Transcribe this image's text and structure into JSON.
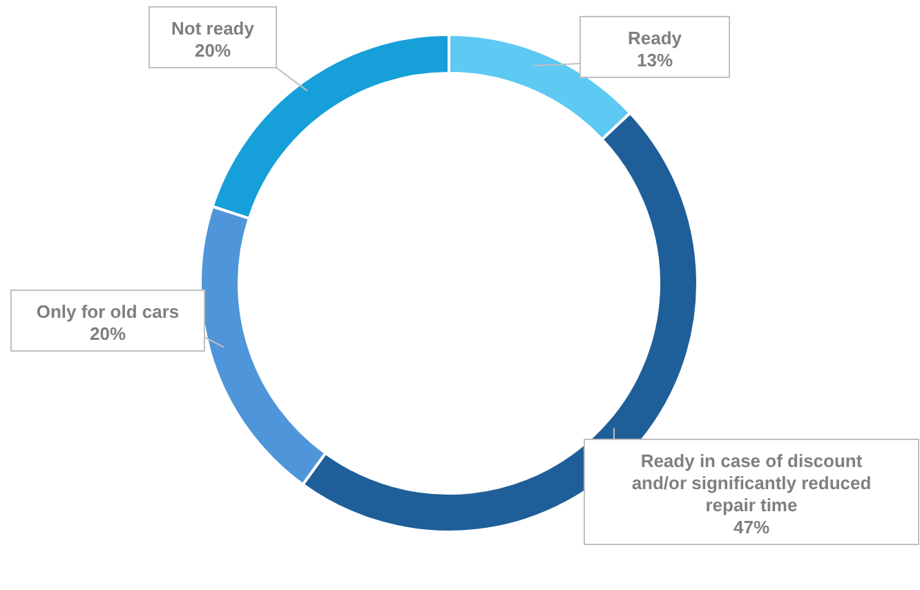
{
  "chart_data": {
    "type": "donut",
    "categories": [
      "Ready",
      "Ready in case of discount and/or significantly reduced repair time",
      "Only for old cars",
      "Not ready"
    ],
    "values": [
      13,
      47,
      20,
      20
    ],
    "value_labels": [
      "13%",
      "47%",
      "20%",
      "20%"
    ],
    "colors": [
      "#5ec9f3",
      "#1f5f99",
      "#4f95da",
      "#169fd8"
    ],
    "legend": false
  }
}
